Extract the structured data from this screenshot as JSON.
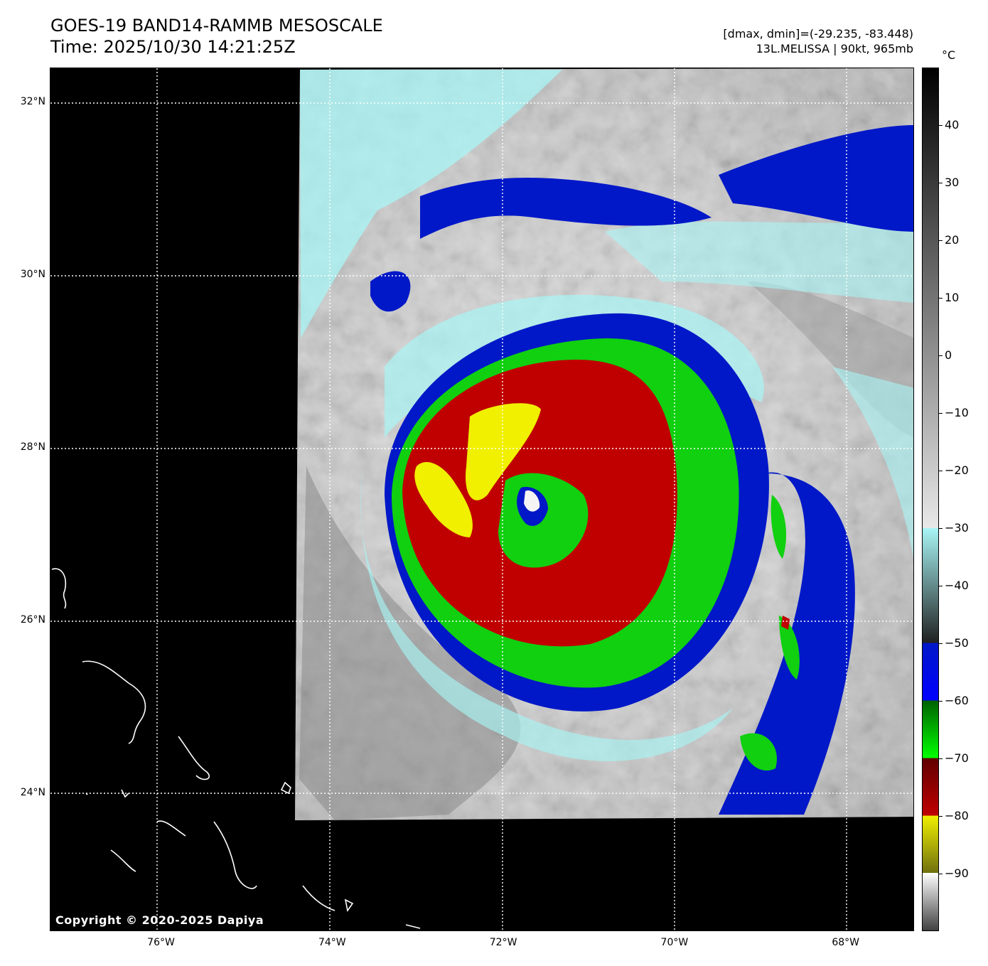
{
  "header": {
    "title_line1": "GOES-19 BAND14-RAMMB MESOSCALE",
    "title_line2": "Time: 2025/10/30 14:21:25Z",
    "info_line1": "[dmax, dmin]=(-29.235, -83.448)",
    "info_line2": "13L.MELISSA | 90kt, 965mb"
  },
  "map": {
    "lat_range": [
      22.4,
      32.4
    ],
    "lon_range": [
      -77.3,
      -67.2
    ],
    "lat_labels": [
      {
        "text": "32°N",
        "lat": 32
      },
      {
        "text": "30°N",
        "lat": 30
      },
      {
        "text": "28°N",
        "lat": 28
      },
      {
        "text": "26°N",
        "lat": 26
      },
      {
        "text": "24°N",
        "lat": 24
      }
    ],
    "lon_labels": [
      {
        "text": "76°W",
        "lon": -76
      },
      {
        "text": "74°W",
        "lon": -74
      },
      {
        "text": "72°W",
        "lon": -72
      },
      {
        "text": "70°W",
        "lon": -70
      },
      {
        "text": "68°W",
        "lon": -68
      }
    ],
    "gridlines": "dotted white",
    "copyright": "Copyright © 2020-2025 Dapiya"
  },
  "colorbar": {
    "unit": "°C",
    "range": [
      -100,
      50
    ],
    "ticks": [
      {
        "text": "40",
        "value": 40
      },
      {
        "text": "30",
        "value": 30
      },
      {
        "text": "20",
        "value": 20
      },
      {
        "text": "10",
        "value": 10
      },
      {
        "text": "0",
        "value": 0
      },
      {
        "text": "−10",
        "value": -10
      },
      {
        "text": "−20",
        "value": -20
      },
      {
        "text": "−30",
        "value": -30
      },
      {
        "text": "−40",
        "value": -40
      },
      {
        "text": "−50",
        "value": -50
      },
      {
        "text": "−60",
        "value": -60
      },
      {
        "text": "−70",
        "value": -70
      },
      {
        "text": "−80",
        "value": -80
      },
      {
        "text": "−90",
        "value": -90
      }
    ],
    "colors": {
      "warm_black": "#000000",
      "light_gray": "#e8e8e8",
      "cyan": "#a8f5f5",
      "blue": "#0018c8",
      "green": "#10d010",
      "red": "#c00000",
      "yellow": "#f0f000",
      "olive": "#707010"
    }
  }
}
